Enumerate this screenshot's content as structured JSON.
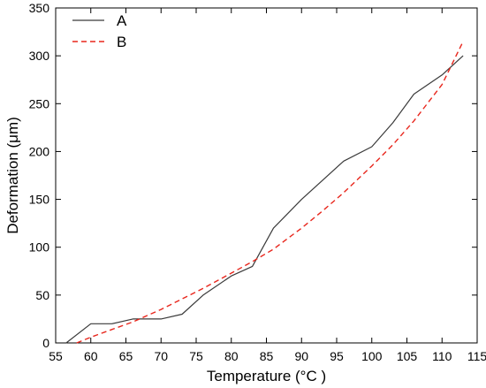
{
  "chart_data": {
    "type": "line",
    "xlabel": "Temperature (°C )",
    "ylabel": "Deformation (μm)",
    "xlim": [
      55,
      115
    ],
    "ylim": [
      0,
      350
    ],
    "x_ticks": [
      55,
      60,
      65,
      70,
      75,
      80,
      85,
      90,
      95,
      100,
      105,
      110,
      115
    ],
    "y_ticks": [
      0,
      50,
      100,
      150,
      200,
      250,
      300,
      350
    ],
    "grid": false,
    "legend_position": "top-left",
    "series": [
      {
        "name": "A",
        "style": "solid",
        "color": "#3a3a3a",
        "x": [
          56.5,
          60,
          63,
          66,
          70,
          73,
          76,
          80,
          83,
          86,
          90,
          93,
          96,
          100,
          103,
          106,
          110,
          113
        ],
        "y": [
          0,
          20,
          20,
          25,
          25,
          30,
          50,
          70,
          80,
          120,
          150,
          170,
          190,
          205,
          230,
          260,
          280,
          300
        ]
      },
      {
        "name": "B",
        "style": "dashed",
        "color": "#e8261c",
        "x": [
          58,
          60,
          63,
          66,
          70,
          73,
          76,
          80,
          83,
          86,
          90,
          93,
          96,
          100,
          103,
          106,
          110,
          113
        ],
        "y": [
          0,
          6,
          14,
          22,
          35,
          46,
          57,
          73,
          85,
          98,
          120,
          138,
          157,
          185,
          207,
          232,
          270,
          315
        ]
      }
    ]
  }
}
